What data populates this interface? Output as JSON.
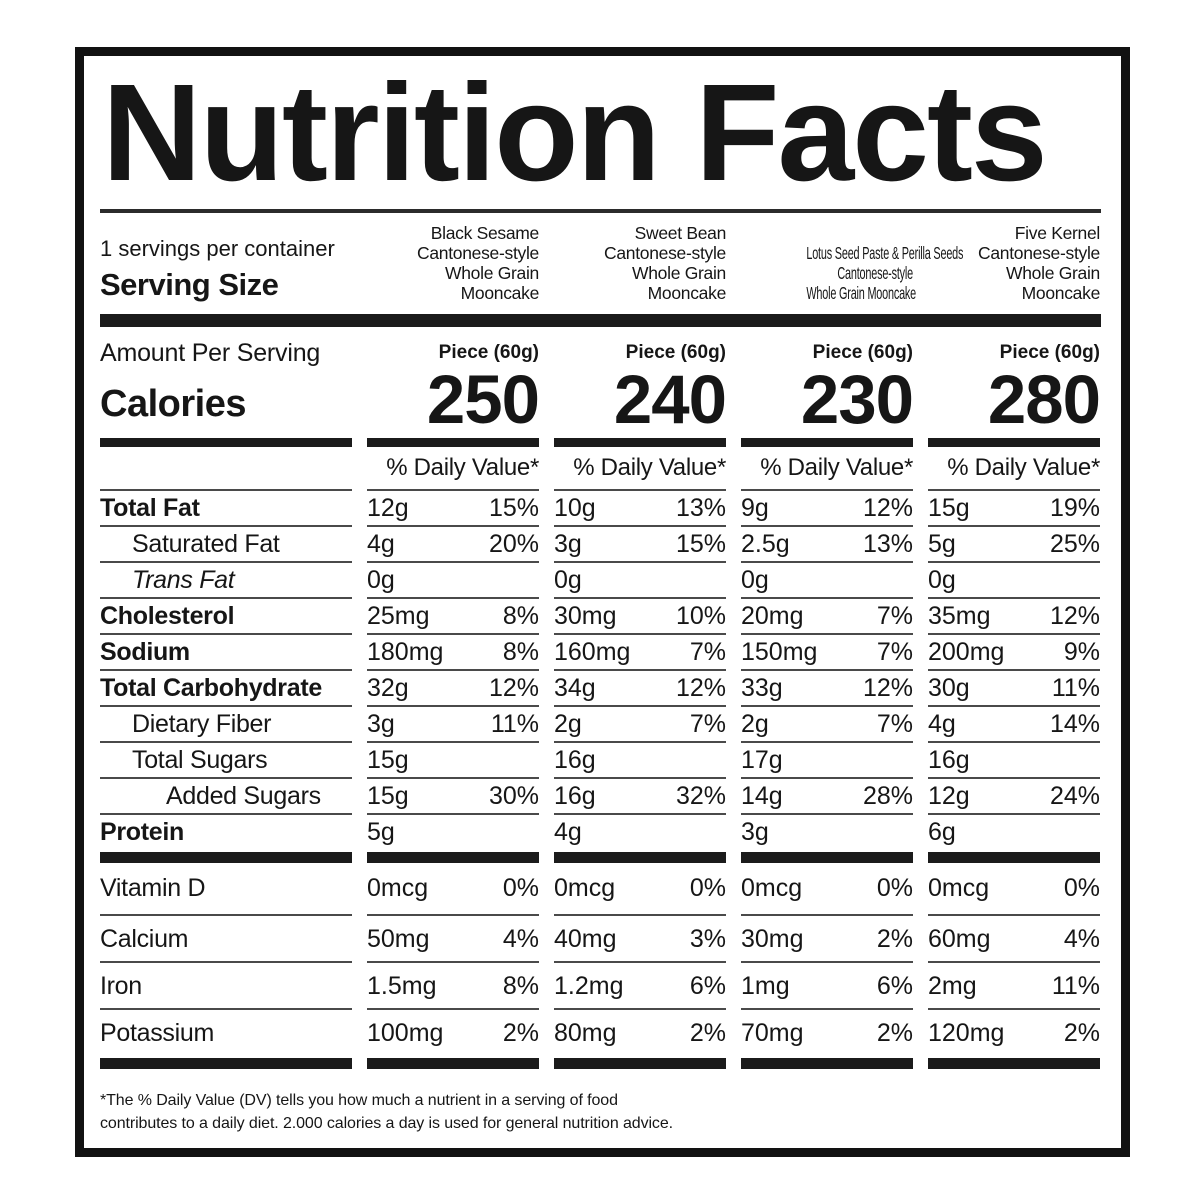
{
  "title": "Nutrition Facts",
  "serving": {
    "servings_per_container": "1 servings per container",
    "serving_size_label": "Serving Size",
    "amount_per_serving": "Amount Per Serving"
  },
  "calories_label": "Calories",
  "dv_header": "% Daily Value*",
  "products": [
    {
      "lines": [
        "Black Sesame",
        "Cantonese-style",
        "Whole Grain Mooncake"
      ],
      "unit": "Piece (60g)",
      "calories": "250"
    },
    {
      "lines": [
        "Sweet Bean",
        "Cantonese-style",
        "Whole Grain Mooncake"
      ],
      "unit": "Piece (60g)",
      "calories": "240"
    },
    {
      "lines": [
        "Lotus Seed Paste & Perilla Seeds",
        "Cantonese-style",
        "Whole Grain Mooncake"
      ],
      "unit": "Piece (60g)",
      "calories": "230"
    },
    {
      "lines": [
        "Five Kernel",
        "Cantonese-style",
        "Whole Grain Mooncake"
      ],
      "unit": "Piece (60g)",
      "calories": "280"
    }
  ],
  "nutrients": [
    {
      "name": "Total Fat",
      "emphasis": "bold",
      "indent": 0,
      "values": [
        {
          "amount": "12g",
          "dv": "15%"
        },
        {
          "amount": "10g",
          "dv": "13%"
        },
        {
          "amount": "9g",
          "dv": "12%"
        },
        {
          "amount": "15g",
          "dv": "19%"
        }
      ]
    },
    {
      "name": "Saturated Fat",
      "emphasis": "regular",
      "indent": 1,
      "values": [
        {
          "amount": "4g",
          "dv": "20%"
        },
        {
          "amount": "3g",
          "dv": "15%"
        },
        {
          "amount": "2.5g",
          "dv": "13%"
        },
        {
          "amount": "5g",
          "dv": "25%"
        }
      ]
    },
    {
      "name": "Trans Fat",
      "emphasis": "italic",
      "indent": 1,
      "values": [
        {
          "amount": "0g",
          "dv": ""
        },
        {
          "amount": "0g",
          "dv": ""
        },
        {
          "amount": "0g",
          "dv": ""
        },
        {
          "amount": "0g",
          "dv": ""
        }
      ]
    },
    {
      "name": "Cholesterol",
      "emphasis": "bold",
      "indent": 0,
      "values": [
        {
          "amount": "25mg",
          "dv": "8%"
        },
        {
          "amount": "30mg",
          "dv": "10%"
        },
        {
          "amount": "20mg",
          "dv": "7%"
        },
        {
          "amount": "35mg",
          "dv": "12%"
        }
      ]
    },
    {
      "name": "Sodium",
      "emphasis": "bold",
      "indent": 0,
      "values": [
        {
          "amount": "180mg",
          "dv": "8%"
        },
        {
          "amount": "160mg",
          "dv": "7%"
        },
        {
          "amount": "150mg",
          "dv": "7%"
        },
        {
          "amount": "200mg",
          "dv": "9%"
        }
      ]
    },
    {
      "name": "Total Carbohydrate",
      "emphasis": "bold",
      "indent": 0,
      "values": [
        {
          "amount": "32g",
          "dv": "12%"
        },
        {
          "amount": "34g",
          "dv": "12%"
        },
        {
          "amount": "33g",
          "dv": "12%"
        },
        {
          "amount": "30g",
          "dv": "11%"
        }
      ]
    },
    {
      "name": "Dietary Fiber",
      "emphasis": "regular",
      "indent": 1,
      "values": [
        {
          "amount": "3g",
          "dv": "11%"
        },
        {
          "amount": "2g",
          "dv": "7%"
        },
        {
          "amount": "2g",
          "dv": "7%"
        },
        {
          "amount": "4g",
          "dv": "14%"
        }
      ]
    },
    {
      "name": "Total Sugars",
      "emphasis": "regular",
      "indent": 1,
      "values": [
        {
          "amount": "15g",
          "dv": ""
        },
        {
          "amount": "16g",
          "dv": ""
        },
        {
          "amount": "17g",
          "dv": ""
        },
        {
          "amount": "16g",
          "dv": ""
        }
      ]
    },
    {
      "name": "Added Sugars",
      "emphasis": "regular",
      "indent": 2,
      "values": [
        {
          "amount": "15g",
          "dv": "30%"
        },
        {
          "amount": "16g",
          "dv": "32%"
        },
        {
          "amount": "14g",
          "dv": "28%"
        },
        {
          "amount": "12g",
          "dv": "24%"
        }
      ]
    },
    {
      "name": "Protein",
      "emphasis": "bold",
      "indent": 0,
      "values": [
        {
          "amount": "5g",
          "dv": ""
        },
        {
          "amount": "4g",
          "dv": ""
        },
        {
          "amount": "3g",
          "dv": ""
        },
        {
          "amount": "6g",
          "dv": ""
        }
      ]
    }
  ],
  "vitamins": [
    {
      "name": "Vitamin D",
      "emphasis": "regular",
      "indent": 0,
      "values": [
        {
          "amount": "0mcg",
          "dv": "0%"
        },
        {
          "amount": "0mcg",
          "dv": "0%"
        },
        {
          "amount": "0mcg",
          "dv": "0%"
        },
        {
          "amount": "0mcg",
          "dv": "0%"
        }
      ]
    },
    {
      "name": "Calcium",
      "emphasis": "regular",
      "indent": 0,
      "values": [
        {
          "amount": "50mg",
          "dv": "4%"
        },
        {
          "amount": "40mg",
          "dv": "3%"
        },
        {
          "amount": "30mg",
          "dv": "2%"
        },
        {
          "amount": "60mg",
          "dv": "4%"
        }
      ]
    },
    {
      "name": "Iron",
      "emphasis": "regular",
      "indent": 0,
      "values": [
        {
          "amount": "1.5mg",
          "dv": "8%"
        },
        {
          "amount": "1.2mg",
          "dv": "6%"
        },
        {
          "amount": "1mg",
          "dv": "6%"
        },
        {
          "amount": "2mg",
          "dv": "11%"
        }
      ]
    },
    {
      "name": "Potassium",
      "emphasis": "regular",
      "indent": 0,
      "values": [
        {
          "amount": "100mg",
          "dv": "2%"
        },
        {
          "amount": "80mg",
          "dv": "2%"
        },
        {
          "amount": "70mg",
          "dv": "2%"
        },
        {
          "amount": "120mg",
          "dv": "2%"
        }
      ]
    }
  ],
  "footnote_lines": [
    "*The % Daily Value (DV) tells you how much a nutrient in a serving of food",
    "contributes to a daily diet. 2.000 calories a day is used for general nutrition advice."
  ],
  "colors": {
    "text": "#161616",
    "bars": "#1b1b1b",
    "rules": "#4a4a4a"
  }
}
